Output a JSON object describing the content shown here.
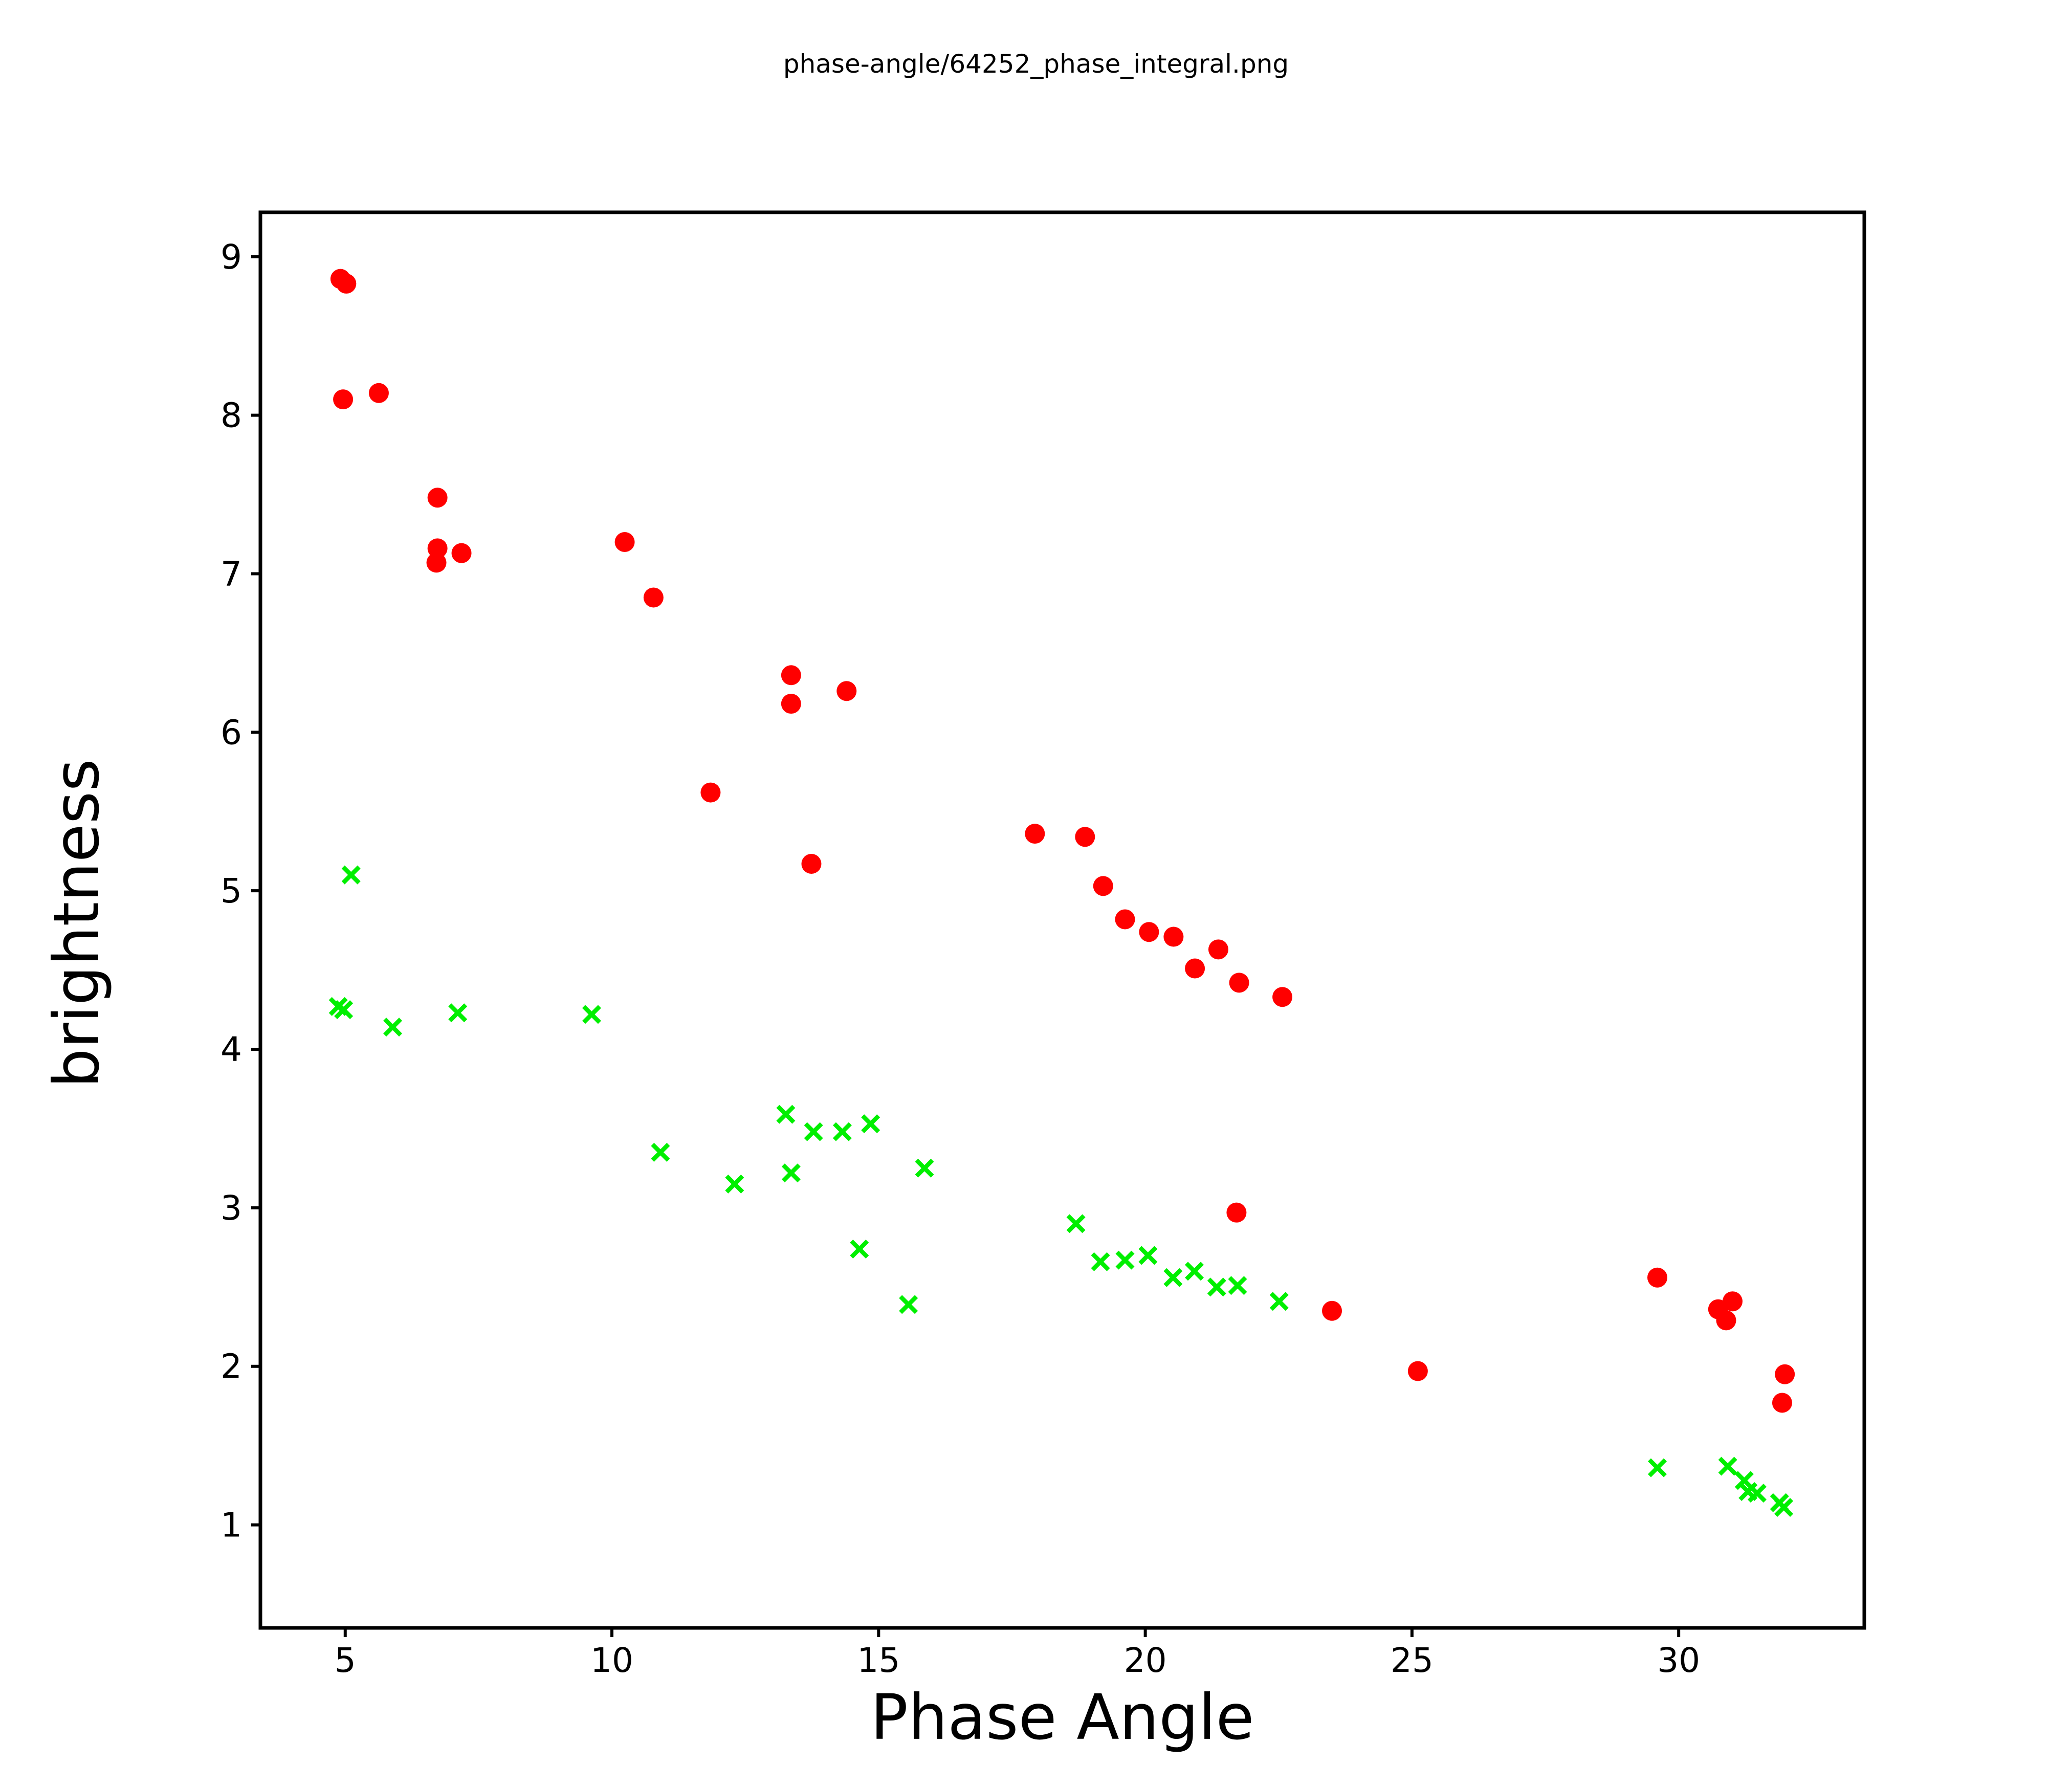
{
  "chart_data": {
    "type": "scatter",
    "title": "phase-angle/64252_phase_integral.png",
    "xlabel": "Phase Angle",
    "ylabel": "brightness",
    "xlim": [
      3.41,
      33.48
    ],
    "ylim": [
      0.35,
      9.28
    ],
    "x_ticks": [
      5,
      10,
      15,
      20,
      25,
      30
    ],
    "y_ticks": [
      1,
      2,
      3,
      4,
      5,
      6,
      7,
      8,
      9
    ],
    "grid": false,
    "legend_position": "none",
    "background_color": "#ffffff",
    "axis_color": "#000000",
    "series": [
      {
        "name": "red-circles",
        "marker": "circle",
        "color": "#ff0000",
        "marker_radius_px": 19.5,
        "points": [
          [
            4.91,
            8.86
          ],
          [
            5.02,
            8.83
          ],
          [
            4.96,
            8.1
          ],
          [
            5.63,
            8.14
          ],
          [
            6.73,
            7.48
          ],
          [
            6.73,
            7.16
          ],
          [
            6.71,
            7.07
          ],
          [
            7.18,
            7.13
          ],
          [
            10.24,
            7.2
          ],
          [
            10.78,
            6.85
          ],
          [
            13.36,
            6.36
          ],
          [
            13.36,
            6.18
          ],
          [
            14.4,
            6.26
          ],
          [
            11.85,
            5.62
          ],
          [
            13.74,
            5.17
          ],
          [
            17.93,
            5.36
          ],
          [
            18.87,
            5.34
          ],
          [
            19.21,
            5.03
          ],
          [
            19.62,
            4.82
          ],
          [
            20.07,
            4.74
          ],
          [
            20.53,
            4.71
          ],
          [
            21.37,
            4.63
          ],
          [
            20.93,
            4.51
          ],
          [
            21.76,
            4.42
          ],
          [
            22.57,
            4.33
          ],
          [
            21.71,
            2.97
          ],
          [
            23.5,
            2.35
          ],
          [
            25.11,
            1.97
          ],
          [
            29.6,
            2.56
          ],
          [
            30.74,
            2.36
          ],
          [
            31.01,
            2.41
          ],
          [
            30.89,
            2.29
          ],
          [
            31.99,
            1.95
          ],
          [
            31.94,
            1.77
          ]
        ]
      },
      {
        "name": "green-x-marks",
        "marker": "x",
        "color": "#00ef00",
        "marker_half_size_px": 15.5,
        "marker_stroke_px": 8.5,
        "points": [
          [
            5.11,
            5.1
          ],
          [
            4.87,
            4.27
          ],
          [
            4.97,
            4.25
          ],
          [
            5.89,
            4.14
          ],
          [
            7.11,
            4.23
          ],
          [
            9.62,
            4.22
          ],
          [
            10.91,
            3.35
          ],
          [
            12.3,
            3.15
          ],
          [
            13.26,
            3.59
          ],
          [
            13.36,
            3.22
          ],
          [
            13.78,
            3.48
          ],
          [
            14.32,
            3.48
          ],
          [
            14.85,
            3.53
          ],
          [
            15.86,
            3.25
          ],
          [
            14.64,
            2.74
          ],
          [
            15.56,
            2.39
          ],
          [
            18.7,
            2.9
          ],
          [
            19.16,
            2.66
          ],
          [
            19.62,
            2.67
          ],
          [
            20.05,
            2.7
          ],
          [
            20.52,
            2.56
          ],
          [
            20.92,
            2.6
          ],
          [
            21.34,
            2.5
          ],
          [
            21.73,
            2.51
          ],
          [
            22.51,
            2.41
          ],
          [
            29.6,
            1.36
          ],
          [
            30.92,
            1.37
          ],
          [
            31.23,
            1.28
          ],
          [
            31.3,
            1.21
          ],
          [
            31.47,
            1.2
          ],
          [
            31.89,
            1.14
          ],
          [
            31.97,
            1.11
          ]
        ]
      }
    ]
  }
}
